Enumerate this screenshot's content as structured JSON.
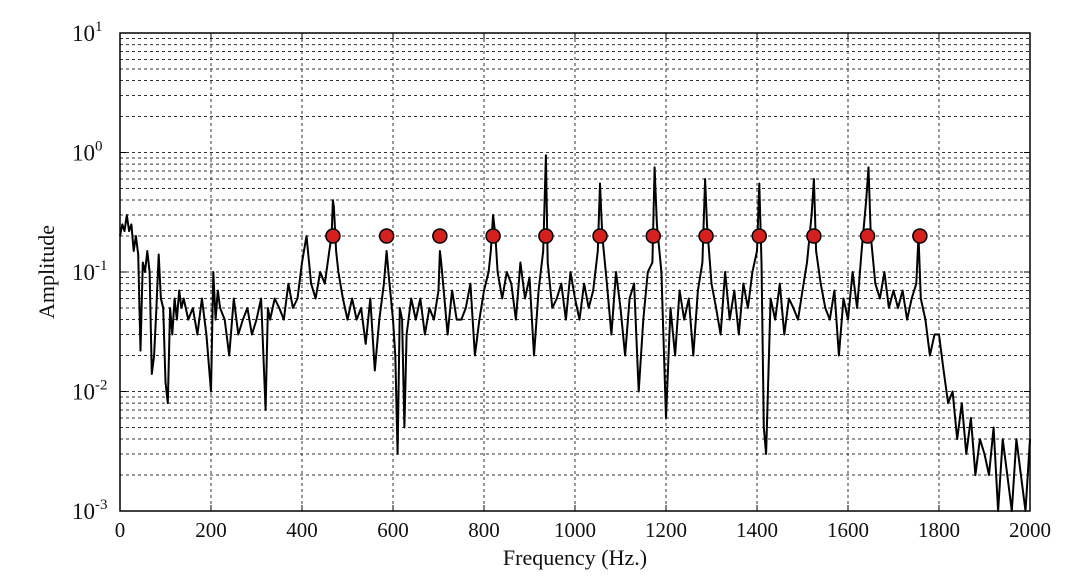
{
  "chart_data": {
    "type": "line",
    "title": "",
    "xlabel": "Frequency (Hz.)",
    "ylabel": "Amplitude",
    "xlim": [
      0,
      2000
    ],
    "ylim": [
      0.001,
      10
    ],
    "y_scale": "log",
    "grid": true,
    "x_ticks": [
      0,
      200,
      400,
      600,
      800,
      1000,
      1200,
      1400,
      1600,
      1800,
      2000
    ],
    "x_tick_labels": [
      "0",
      "200",
      "400",
      "600",
      "800",
      "1000",
      "1200",
      "1400",
      "1600",
      "1800",
      "2000"
    ],
    "y_ticks": [
      0.001,
      0.01,
      0.1,
      1,
      10
    ],
    "y_tick_labels": [
      {
        "base": "10",
        "exp": "-3"
      },
      {
        "base": "10",
        "exp": "-2"
      },
      {
        "base": "10",
        "exp": "-1"
      },
      {
        "base": "10",
        "exp": "0"
      },
      {
        "base": "10",
        "exp": "1"
      }
    ],
    "series": [
      {
        "role": "spectrum",
        "color": "#000000",
        "x": [
          0,
          5,
          10,
          15,
          20,
          25,
          30,
          35,
          40,
          45,
          50,
          55,
          60,
          65,
          70,
          75,
          80,
          85,
          90,
          95,
          100,
          105,
          110,
          115,
          120,
          125,
          130,
          135,
          140,
          150,
          160,
          170,
          180,
          190,
          200,
          205,
          210,
          215,
          220,
          230,
          240,
          250,
          260,
          270,
          280,
          290,
          300,
          310,
          320,
          325,
          330,
          340,
          350,
          360,
          370,
          380,
          390,
          400,
          410,
          420,
          430,
          440,
          450,
          460,
          465,
          468,
          470,
          475,
          480,
          490,
          500,
          510,
          520,
          530,
          540,
          550,
          560,
          570,
          580,
          586,
          590,
          600,
          605,
          610,
          615,
          620,
          625,
          630,
          640,
          650,
          660,
          670,
          680,
          690,
          700,
          703,
          706,
          710,
          720,
          730,
          740,
          750,
          760,
          770,
          780,
          790,
          800,
          810,
          815,
          820,
          825,
          830,
          840,
          850,
          860,
          870,
          880,
          890,
          900,
          910,
          920,
          930,
          936,
          940,
          950,
          960,
          970,
          980,
          990,
          1000,
          1010,
          1020,
          1030,
          1040,
          1050,
          1055,
          1060,
          1070,
          1080,
          1090,
          1100,
          1110,
          1120,
          1130,
          1140,
          1150,
          1160,
          1170,
          1175,
          1180,
          1190,
          1200,
          1210,
          1220,
          1230,
          1240,
          1250,
          1260,
          1270,
          1280,
          1286,
          1290,
          1300,
          1310,
          1320,
          1330,
          1340,
          1350,
          1360,
          1370,
          1380,
          1390,
          1400,
          1405,
          1410,
          1415,
          1420,
          1430,
          1440,
          1450,
          1460,
          1470,
          1480,
          1490,
          1500,
          1510,
          1520,
          1525,
          1530,
          1540,
          1550,
          1560,
          1570,
          1580,
          1590,
          1600,
          1610,
          1620,
          1630,
          1640,
          1645,
          1650,
          1660,
          1670,
          1680,
          1690,
          1700,
          1710,
          1720,
          1730,
          1740,
          1750,
          1755,
          1760,
          1770,
          1780,
          1790,
          1800,
          1810,
          1820,
          1830,
          1840,
          1850,
          1860,
          1870,
          1880,
          1890,
          1900,
          1910,
          1920,
          1930,
          1940,
          1950,
          1960,
          1970,
          1980,
          1990,
          2000
        ],
        "y": [
          0.2,
          0.25,
          0.22,
          0.3,
          0.22,
          0.25,
          0.15,
          0.2,
          0.14,
          0.022,
          0.12,
          0.1,
          0.15,
          0.1,
          0.014,
          0.02,
          0.05,
          0.14,
          0.06,
          0.05,
          0.012,
          0.008,
          0.05,
          0.03,
          0.06,
          0.04,
          0.07,
          0.05,
          0.06,
          0.04,
          0.05,
          0.03,
          0.06,
          0.03,
          0.01,
          0.1,
          0.04,
          0.07,
          0.05,
          0.04,
          0.02,
          0.06,
          0.03,
          0.04,
          0.05,
          0.03,
          0.04,
          0.06,
          0.007,
          0.05,
          0.04,
          0.06,
          0.05,
          0.04,
          0.08,
          0.05,
          0.06,
          0.12,
          0.2,
          0.08,
          0.06,
          0.1,
          0.08,
          0.15,
          0.2,
          0.4,
          0.35,
          0.15,
          0.1,
          0.06,
          0.04,
          0.06,
          0.04,
          0.05,
          0.025,
          0.06,
          0.015,
          0.04,
          0.08,
          0.15,
          0.1,
          0.04,
          0.02,
          0.003,
          0.05,
          0.04,
          0.005,
          0.03,
          0.06,
          0.04,
          0.06,
          0.03,
          0.05,
          0.04,
          0.07,
          0.15,
          0.12,
          0.08,
          0.03,
          0.07,
          0.04,
          0.04,
          0.05,
          0.08,
          0.02,
          0.04,
          0.07,
          0.1,
          0.15,
          0.3,
          0.2,
          0.1,
          0.06,
          0.1,
          0.08,
          0.04,
          0.12,
          0.06,
          0.09,
          0.02,
          0.07,
          0.15,
          0.95,
          0.12,
          0.05,
          0.06,
          0.08,
          0.04,
          0.1,
          0.06,
          0.04,
          0.08,
          0.05,
          0.07,
          0.15,
          0.55,
          0.2,
          0.08,
          0.03,
          0.1,
          0.05,
          0.02,
          0.06,
          0.08,
          0.01,
          0.04,
          0.1,
          0.12,
          0.75,
          0.25,
          0.1,
          0.006,
          0.05,
          0.02,
          0.07,
          0.04,
          0.06,
          0.02,
          0.07,
          0.12,
          0.6,
          0.25,
          0.08,
          0.05,
          0.03,
          0.1,
          0.04,
          0.07,
          0.03,
          0.08,
          0.05,
          0.1,
          0.15,
          0.55,
          0.12,
          0.005,
          0.003,
          0.06,
          0.04,
          0.08,
          0.03,
          0.06,
          0.05,
          0.04,
          0.07,
          0.12,
          0.3,
          0.6,
          0.15,
          0.08,
          0.05,
          0.04,
          0.07,
          0.02,
          0.06,
          0.04,
          0.1,
          0.05,
          0.15,
          0.4,
          0.75,
          0.2,
          0.08,
          0.06,
          0.1,
          0.05,
          0.07,
          0.05,
          0.07,
          0.04,
          0.06,
          0.08,
          0.2,
          0.06,
          0.04,
          0.02,
          0.03,
          0.03,
          0.015,
          0.008,
          0.01,
          0.004,
          0.008,
          0.003,
          0.006,
          0.002,
          0.004,
          0.003,
          0.002,
          0.005,
          0.001,
          0.004,
          0.002,
          0.001,
          0.004,
          0.002,
          0.001,
          0.004
        ]
      },
      {
        "role": "markers",
        "color": "#d62020",
        "x": [
          468,
          586,
          703,
          820,
          936,
          1055,
          1172,
          1288,
          1405,
          1525,
          1643,
          1758
        ],
        "y": [
          0.2,
          0.2,
          0.2,
          0.2,
          0.2,
          0.2,
          0.2,
          0.2,
          0.2,
          0.2,
          0.2,
          0.2
        ]
      }
    ]
  }
}
